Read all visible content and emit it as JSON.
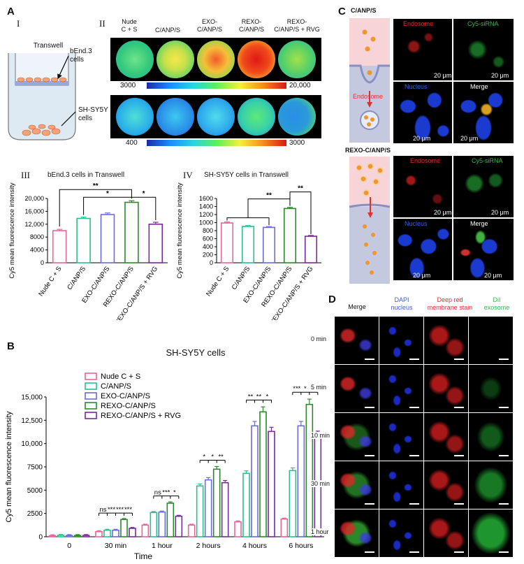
{
  "panelA": {
    "letter": "A",
    "roman1": "I",
    "roman2": "II",
    "roman3": "III",
    "roman4": "IV",
    "transwell": "Transwell",
    "bend3_label": "bEnd.3\ncells",
    "shsy5y_label": "SH-SY5Y\ncells",
    "columns": [
      "Nude\nC + S",
      "C/ANP/S",
      "EXO-\nC/ANP/S",
      "REXO-\nC/ANP/S",
      "REXO-\nC/ANP/S + RVG"
    ],
    "bar1_min": "3000",
    "bar1_max": "20,000",
    "bar2_min": "400",
    "bar2_max": "3000",
    "chart3_title": "bEnd.3 cells in Transwell",
    "chart4_title": "SH-SY5Y cells in Transwell"
  },
  "panelB": {
    "letter": "B",
    "title": "SH-SY5Y cells"
  },
  "panelC": {
    "letter": "C",
    "group1": "C/ANP/S",
    "group2": "REXO-C/ANP/S",
    "endosome": "Endosome",
    "cy5": "Cy5-siRNA",
    "nucleus": "Nucleus",
    "merge": "Merge",
    "scale": "20 μm"
  },
  "panelD": {
    "letter": "D",
    "col1": "Merge",
    "col2": "DAPI\nnucleus",
    "col3": "Deep red\nmembrane stain",
    "col4": "DiI\nexosome",
    "rows": [
      "0 min",
      "5 min",
      "10 min",
      "30 min",
      "1 hour"
    ]
  },
  "colors": {
    "nude": "#e8669a",
    "canps": "#2bbf8e",
    "exo": "#6b6bdc",
    "rexo": "#2a8a2a",
    "rvg": "#7a2a9a"
  },
  "chart_data": [
    {
      "type": "bar",
      "title": "bEnd.3 cells in Transwell",
      "ylabel": "Cy5 mean fluorescence intensity",
      "categories": [
        "Nude C + S",
        "C/ANP/S",
        "EXO-C/ANP/S",
        "REXO-C/ANP/S",
        "REXO-C/ANP/S + RVG"
      ],
      "values": [
        10000,
        13800,
        15000,
        18800,
        12000
      ],
      "errors": [
        400,
        400,
        500,
        500,
        600
      ],
      "yticks": [
        "0",
        "4000",
        "8000",
        "12,000",
        "16,000",
        "20,000"
      ],
      "ylim": [
        0,
        20000
      ],
      "sig": [
        "**",
        "*",
        "*"
      ]
    },
    {
      "type": "bar",
      "title": "SH-SY5Y cells in Transwell",
      "ylabel": "Cy5 mean fluorescence intensity",
      "categories": [
        "Nude C + S",
        "C/ANP/S",
        "EXO-C/ANP/S",
        "REXO-C/ANP/S",
        "REXO-C/ANP/S + RVG"
      ],
      "values": [
        990,
        905,
        880,
        1350,
        660
      ],
      "errors": [
        25,
        20,
        20,
        30,
        20
      ],
      "yticks": [
        "0",
        "200",
        "400",
        "600",
        "800",
        "1000",
        "1200",
        "1400",
        "1600"
      ],
      "ylim": [
        0,
        1600
      ],
      "sig": [
        "**",
        "**"
      ]
    },
    {
      "type": "bar",
      "title": "SH-SY5Y cells",
      "xlabel": "Time",
      "ylabel": "Cy5 mean fluorescence intensity",
      "categories": [
        "0",
        "30 min",
        "1 hour",
        "2 hours",
        "4 hours",
        "6 hours"
      ],
      "yticks": [
        "0",
        "2500",
        "5000",
        "7500",
        "10,000",
        "12,500",
        "15,000"
      ],
      "ylim": [
        0,
        15000
      ],
      "series": [
        {
          "name": "Nude C + S",
          "values": [
            120,
            550,
            1250,
            1250,
            1600,
            1900
          ]
        },
        {
          "name": "C/ANP/S",
          "values": [
            150,
            700,
            2600,
            5450,
            6800,
            7100
          ]
        },
        {
          "name": "EXO-C/ANP/S",
          "values": [
            130,
            700,
            2650,
            6100,
            11900,
            11900
          ]
        },
        {
          "name": "REXO-C/ANP/S",
          "values": [
            130,
            1850,
            3600,
            7250,
            13400,
            14200
          ]
        },
        {
          "name": "REXO-C/ANP/S + RVG",
          "values": [
            140,
            900,
            2200,
            5800,
            11300,
            10900
          ]
        }
      ],
      "sig": [
        [],
        [
          "ns",
          "***",
          "***",
          "***"
        ],
        [
          "ns",
          "***",
          "*"
        ],
        [
          "*",
          "*",
          "**"
        ],
        [
          "**",
          "**",
          "*"
        ],
        [
          "***",
          "*",
          "*"
        ]
      ]
    }
  ]
}
